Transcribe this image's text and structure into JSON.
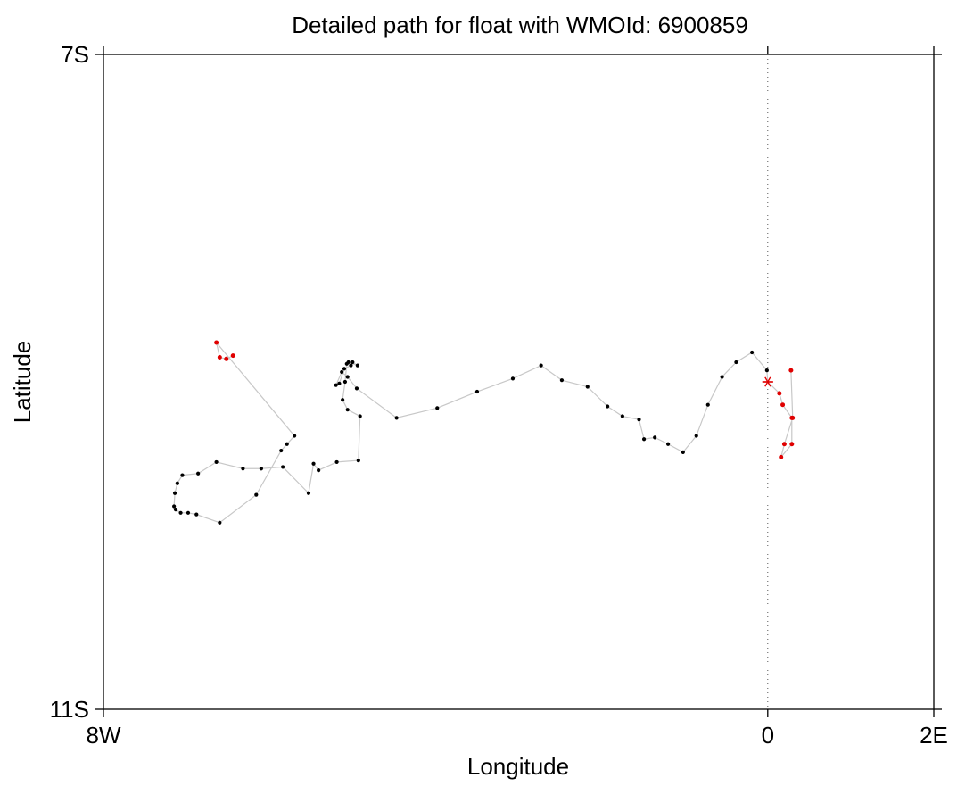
{
  "chart_data": {
    "type": "scatter",
    "title": "Detailed path for float with WMOId: 6900859",
    "xlabel": "Longitude",
    "ylabel": "Latitude",
    "xlim": [
      -8,
      2
    ],
    "ylim": [
      -11,
      -7
    ],
    "x_ticks": [
      {
        "value": -8,
        "label": "8W"
      },
      {
        "value": 0,
        "label": "0"
      },
      {
        "value": 2,
        "label": "2E"
      }
    ],
    "y_ticks": [
      {
        "value": -7,
        "label": "7S"
      },
      {
        "value": -11,
        "label": "11S"
      }
    ],
    "reference_line": {
      "x": 0,
      "style": "dotted"
    },
    "grid": false,
    "colors": {
      "track": "#c8c8c8",
      "profile": "#000000",
      "recent_profile": "#e00000",
      "deployment_marker": "#e00000"
    },
    "deployment": {
      "x": 0.0,
      "y": -9.0
    },
    "series": [
      {
        "role": "track",
        "x": [
          0.0,
          -0.01,
          -0.19,
          -0.38,
          -0.55,
          -0.72,
          -0.86,
          -1.02,
          -1.2,
          -1.36,
          -1.49,
          -1.55,
          -1.75,
          -1.93,
          -2.17,
          -2.48,
          -2.73,
          -3.07,
          -3.5,
          -3.98,
          -4.47,
          -4.95,
          -5.06,
          -5.13,
          -5.2,
          -5.16,
          -5.1,
          -5.02,
          -5.0,
          -4.94,
          -5.05,
          -5.07,
          -5.09,
          -5.12,
          -5.06,
          -4.91,
          -4.93,
          -5.19,
          -5.41,
          -5.47,
          -5.53,
          -5.84,
          -6.1,
          -6.32,
          -6.64,
          -6.86,
          -7.05,
          -7.11,
          -7.14,
          -7.15,
          -7.13,
          -7.07,
          -6.98,
          -6.88,
          -6.6,
          -6.16,
          -5.86,
          -5.79,
          -5.7
        ],
        "y": [
          -9.0,
          -8.93,
          -8.82,
          -8.88,
          -8.97,
          -9.14,
          -9.33,
          -9.43,
          -9.38,
          -9.34,
          -9.35,
          -9.23,
          -9.21,
          -9.15,
          -9.03,
          -8.99,
          -8.9,
          -8.98,
          -9.06,
          -9.16,
          -9.22,
          -9.04,
          -8.97,
          -8.94,
          -9.02,
          -9.01,
          -8.92,
          -8.9,
          -8.88,
          -8.9,
          -8.88,
          -8.89,
          -9.0,
          -9.11,
          -9.17,
          -9.21,
          -9.48,
          -9.49,
          -9.54,
          -9.5,
          -9.68,
          -9.52,
          -9.53,
          -9.53,
          -9.49,
          -9.56,
          -9.57,
          -9.62,
          -9.68,
          -9.76,
          -9.78,
          -9.8,
          -9.8,
          -9.81,
          -9.86,
          -9.69,
          -9.42,
          -9.38,
          -9.33
        ]
      },
      {
        "role": "recent",
        "x": [
          0.0,
          0.14,
          0.18,
          0.29,
          0.29,
          0.16,
          0.2,
          0.3,
          0.28,
          -6.64,
          -6.6,
          -6.52,
          -6.44
        ],
        "y": [
          -9.0,
          -9.07,
          -9.14,
          -9.22,
          -9.38,
          -9.46,
          -9.38,
          -9.22,
          -8.93,
          -8.76,
          -8.85,
          -8.86,
          -8.84
        ]
      }
    ]
  }
}
